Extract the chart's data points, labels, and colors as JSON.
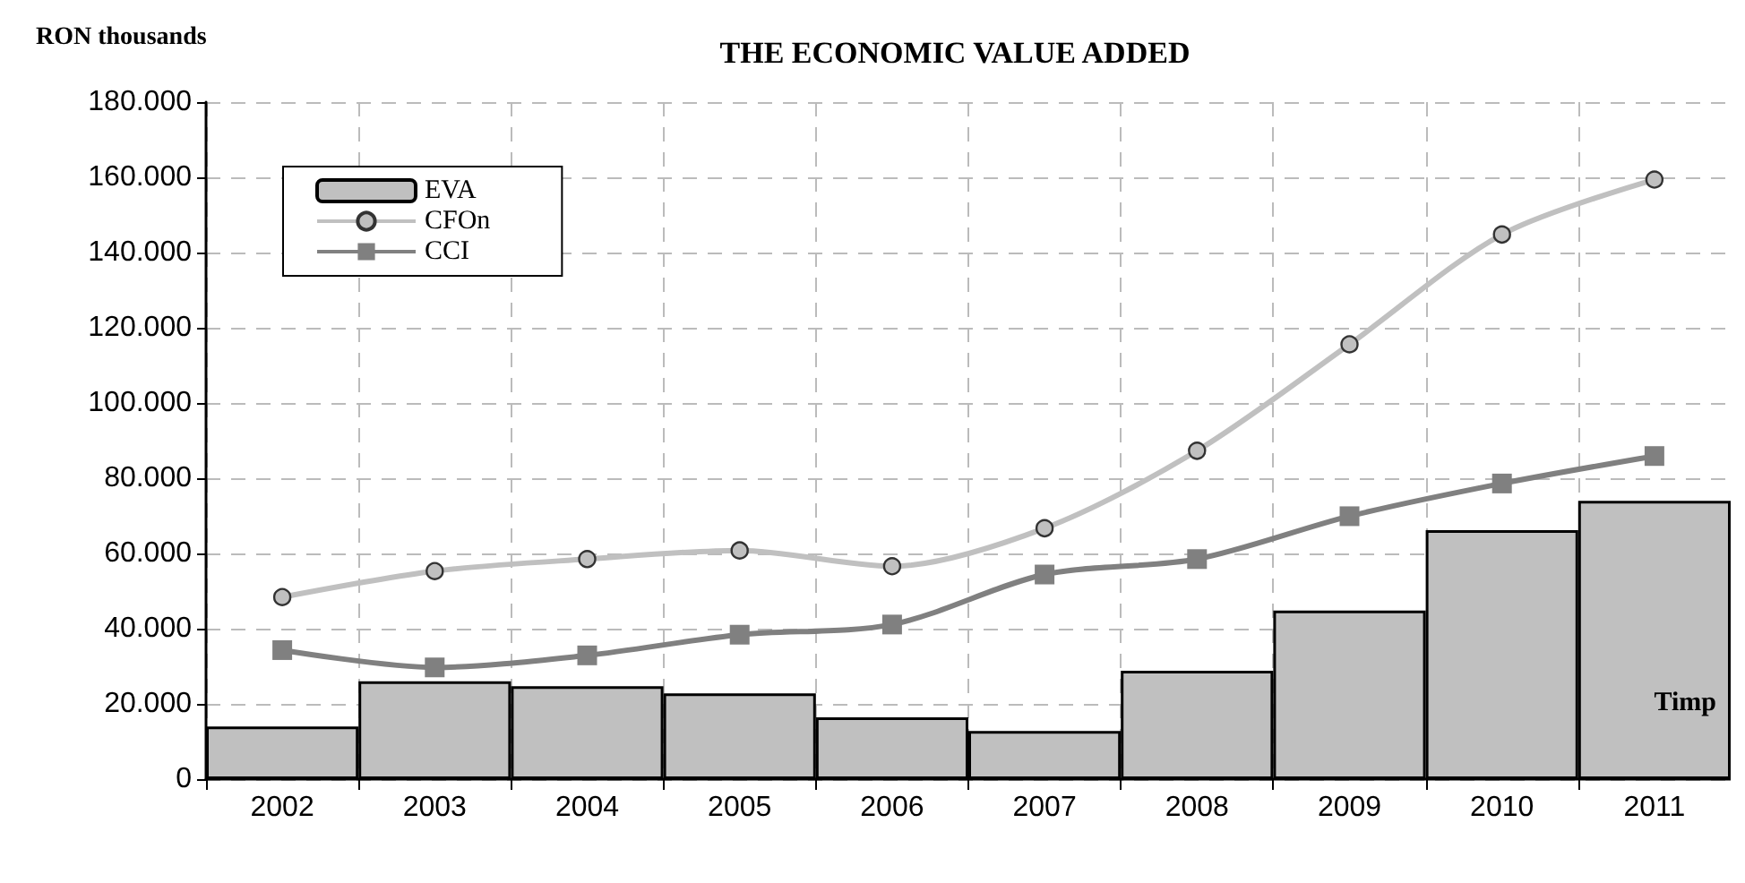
{
  "chart_data": {
    "type": "bar",
    "title": "THE ECONOMIC VALUE ADDED",
    "ylabel": "RON thousands",
    "xlabel": "Timp",
    "categories": [
      "2002",
      "2003",
      "2004",
      "2005",
      "2006",
      "2007",
      "2008",
      "2009",
      "2010",
      "2011"
    ],
    "series": [
      {
        "name": "EVA",
        "color": "#c0c0c0",
        "values": [
          14000,
          26000,
          24700,
          22800,
          16400,
          12800,
          28800,
          44800,
          66200,
          74000
        ]
      },
      {
        "name": "CFOn",
        "type": "line",
        "color": "#c0c0c0",
        "marker": "circle",
        "values": [
          48400,
          55300,
          58500,
          60800,
          56600,
          66700,
          87300,
          115600,
          144800,
          159400
        ]
      },
      {
        "name": "CCI",
        "type": "line",
        "color": "#808080",
        "marker": "square",
        "values": [
          34300,
          29700,
          32900,
          38400,
          41100,
          54400,
          58500,
          69900,
          78600,
          85900
        ]
      }
    ],
    "ylim": [
      0,
      180000
    ],
    "yticks": [
      0,
      {
        "value": 20000,
        "label": "20.000"
      },
      {
        "value": 40000,
        "label": "40.000"
      },
      {
        "value": 60000,
        "label": "60.000"
      },
      {
        "value": 80000,
        "label": "80.000"
      },
      {
        "value": 100000,
        "label": "100.000"
      },
      {
        "value": 120000,
        "label": "120.000"
      },
      {
        "value": 140000,
        "label": "140.000"
      },
      {
        "value": 160000,
        "label": "160.000"
      },
      {
        "value": 180000,
        "label": "180.000"
      }
    ],
    "grid": true,
    "legend": "top left",
    "line_style": "solid"
  }
}
